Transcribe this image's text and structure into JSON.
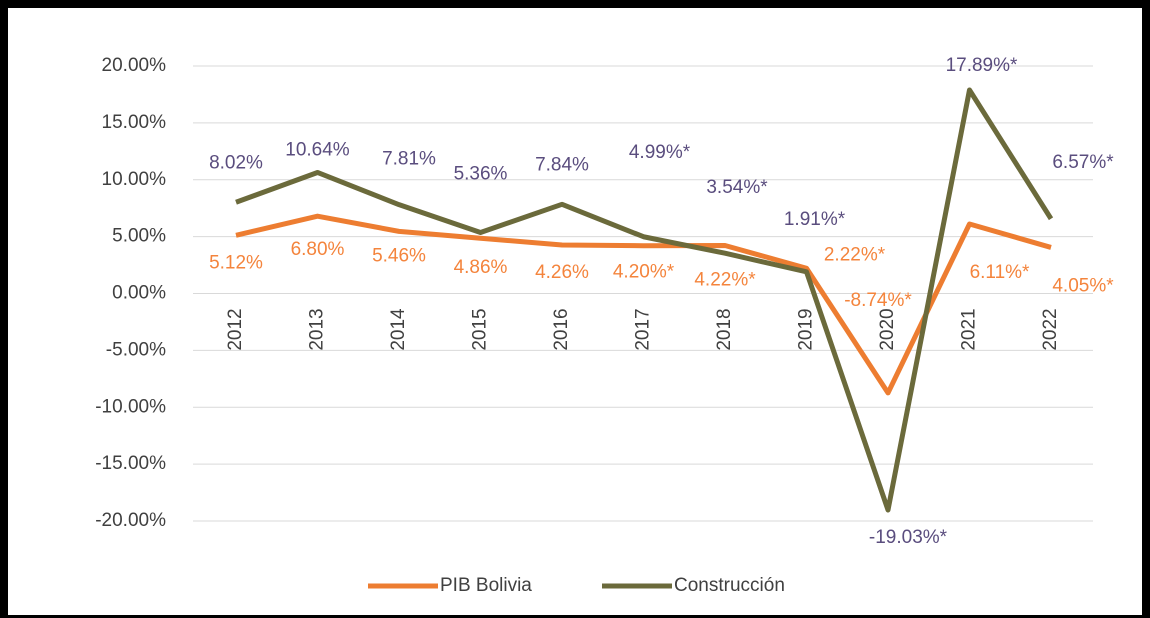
{
  "chart_data": {
    "type": "line",
    "categories": [
      "2012",
      "2013",
      "2014",
      "2015",
      "2016",
      "2017",
      "2018",
      "2019",
      "2020",
      "2021",
      "2022"
    ],
    "series": [
      {
        "name": "PIB Bolivia",
        "color": "#ED7D31",
        "label_color": "#F4843C",
        "values": [
          5.12,
          6.8,
          5.46,
          4.86,
          4.26,
          4.2,
          4.22,
          2.22,
          -8.74,
          6.11,
          4.05
        ],
        "value_labels": [
          "5.12%",
          "6.80%",
          "5.46%",
          "4.86%",
          "4.26%",
          "4.20%*",
          "4.22%*",
          "2.22%*",
          "-8.74%*",
          "6.11%*",
          "4.05%*"
        ]
      },
      {
        "name": "Construcción",
        "color": "#6B6A3B",
        "label_color": "#5A4D7E",
        "values": [
          8.02,
          10.64,
          7.81,
          5.36,
          7.84,
          4.99,
          3.54,
          1.91,
          -19.03,
          17.89,
          6.57
        ],
        "value_labels": [
          "8.02%",
          "10.64%",
          "7.81%",
          "5.36%",
          "7.84%",
          "4.99%*",
          "3.54%*",
          "1.91%*",
          "-19.03%*",
          "17.89%*",
          "6.57%*"
        ]
      }
    ],
    "ylim": [
      -20,
      20
    ],
    "yticks": [
      {
        "value": -20,
        "label": "-20.00%"
      },
      {
        "value": -15,
        "label": "-15.00%"
      },
      {
        "value": -10,
        "label": "-10.00%"
      },
      {
        "value": -5,
        "label": "-5.00%"
      },
      {
        "value": 0,
        "label": "0.00%"
      },
      {
        "value": 5,
        "label": "5.00%"
      },
      {
        "value": 10,
        "label": "10.00%"
      },
      {
        "value": 15,
        "label": "15.00%"
      },
      {
        "value": 20,
        "label": "20.00%"
      }
    ],
    "grid": true,
    "legend": "bottom"
  }
}
